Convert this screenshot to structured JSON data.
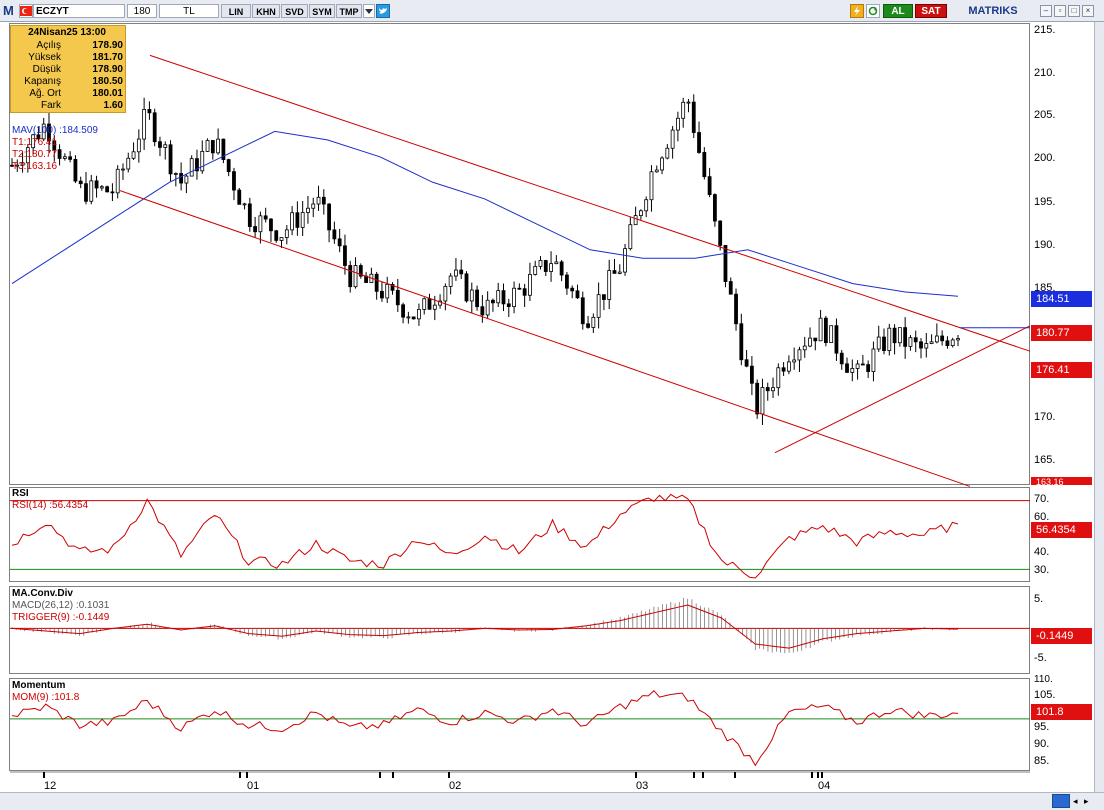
{
  "toolbar": {
    "symbol": "ECZYT",
    "period": "180",
    "currency": "TL",
    "buttons": [
      "LIN",
      "KHN",
      "SVD",
      "SYM",
      "TMP"
    ],
    "right_buttons": {
      "c": "C",
      "buy": "AL",
      "sell": "SAT"
    },
    "brand": "MATRIKS",
    "icons": [
      "logo-m-icon",
      "flag-icon",
      "dropdown-icon",
      "twitter-icon",
      "lightning-icon",
      "refresh-icon",
      "minimize-icon",
      "restore-icon",
      "maximize-icon",
      "close-icon"
    ]
  },
  "ohlc": {
    "date": "24Nisan25 13:00",
    "rows": [
      {
        "label": "Açılış",
        "value": "178.90"
      },
      {
        "label": "Yüksek",
        "value": "181.70"
      },
      {
        "label": "Düşük",
        "value": "178.90"
      },
      {
        "label": "Kapanış",
        "value": "180.50"
      },
      {
        "label": "Ağ. Ort",
        "value": "180.01"
      },
      {
        "label": "Fark",
        "value": "1.60"
      }
    ]
  },
  "main_legend": {
    "mav": "MAV(100)",
    "mav_value": ":184.509",
    "t1": "T1:176.41",
    "t2": "T2:180.77",
    "t3": "T3:163.16"
  },
  "main_scale": {
    "ticks": [
      "215.",
      "210.",
      "205.",
      "200.",
      "195.",
      "190.",
      "185.",
      "170.",
      "165."
    ],
    "tag_mav": "184.51",
    "tag_t2": "180.77",
    "tag_t1": "176.41",
    "tag_t3": "163.16"
  },
  "rsi": {
    "title": "RSI",
    "label": "RSI(14)",
    "value": ":56.4354",
    "ticks": [
      "70.",
      "60.",
      "40.",
      "30."
    ],
    "tag": "56.4354"
  },
  "macd": {
    "title": "MA.Conv.Div",
    "macd_label": "MACD(26,12)",
    "macd_value": ":0.1031",
    "trigger_label": "TRIGGER(9)",
    "trigger_value": ":-0.1449",
    "ticks": [
      "5.",
      "-5."
    ],
    "tag": "-0.1449"
  },
  "momentum": {
    "title": "Momentum",
    "label": "MOM(9)",
    "value": ":101.8",
    "ticks": [
      "110.",
      "105.",
      "95.",
      "90.",
      "85."
    ],
    "tag": "101.8"
  },
  "x_axis": {
    "ticks": [
      "12",
      "01",
      "02",
      "03",
      "04"
    ]
  },
  "colors": {
    "price": "#000000",
    "mav": "#1a2ecc",
    "channel": "#cc0000",
    "tag_mav": "#1a2ee0",
    "tag_red": "#e01010",
    "band_green": "#1a8a1a",
    "ohlc_bg": "#f4c84c"
  },
  "chart_data": [
    {
      "type": "line",
      "title": "ECZYT",
      "y_range": [
        163,
        216
      ],
      "series": [
        {
          "name": "MAV(100)",
          "last": 184.509,
          "values": [
            186,
            190,
            194,
            198,
            201,
            204,
            203,
            201,
            198,
            196,
            193,
            190,
            189,
            189,
            190,
            188,
            186,
            185,
            184.5
          ]
        },
        {
          "name": "Close",
          "values": [
            200,
            205,
            197,
            197,
            206,
            198,
            203,
            194,
            192,
            196,
            187,
            185,
            182,
            187,
            183,
            185,
            189,
            182,
            188,
            200,
            208,
            189,
            171,
            178,
            181,
            175,
            180,
            178,
            180.5
          ]
        }
      ],
      "levels": {
        "T1": 176.41,
        "T2": 180.77,
        "T3": 163.16
      }
    },
    {
      "type": "line",
      "title": "RSI",
      "y_range": [
        25,
        75
      ],
      "bands": [
        70,
        30
      ],
      "series": [
        {
          "name": "RSI(14)",
          "last": 56.4354,
          "values": [
            45,
            58,
            40,
            42,
            70,
            38,
            62,
            35,
            33,
            45,
            35,
            33,
            48,
            38,
            50,
            40,
            56,
            43,
            62,
            72,
            70,
            35,
            26,
            48,
            55,
            46,
            52,
            50,
            56.4
          ]
        }
      ]
    },
    {
      "type": "bar",
      "title": "MA.Conv.Div",
      "y_range": [
        -8,
        7
      ],
      "series": [
        {
          "name": "MACD(26,12)",
          "last": 0.1031
        },
        {
          "name": "TRIGGER(9)",
          "last": -0.1449,
          "values": [
            0,
            -0.5,
            -1,
            0,
            0.8,
            -0.3,
            0.5,
            -1,
            -1.5,
            -0.5,
            -1.2,
            -1.4,
            -0.8,
            -0.5,
            0,
            -0.3,
            -0.2,
            0.5,
            1.5,
            3,
            4.5,
            2,
            -3,
            -3.8,
            -2,
            -1,
            -0.5,
            0,
            -0.14
          ]
        }
      ]
    },
    {
      "type": "line",
      "title": "Momentum",
      "y_range": [
        84,
        112
      ],
      "series": [
        {
          "name": "MOM(9)",
          "last": 101.8,
          "values": [
            101,
            104,
            98,
            99,
            106,
            97,
            103,
            98,
            97,
            102,
            97,
            98,
            103,
            99,
            102,
            99,
            103,
            98,
            104,
            108,
            107,
            96,
            86,
            102,
            104,
            99,
            103,
            101,
            101.8
          ]
        }
      ]
    }
  ]
}
